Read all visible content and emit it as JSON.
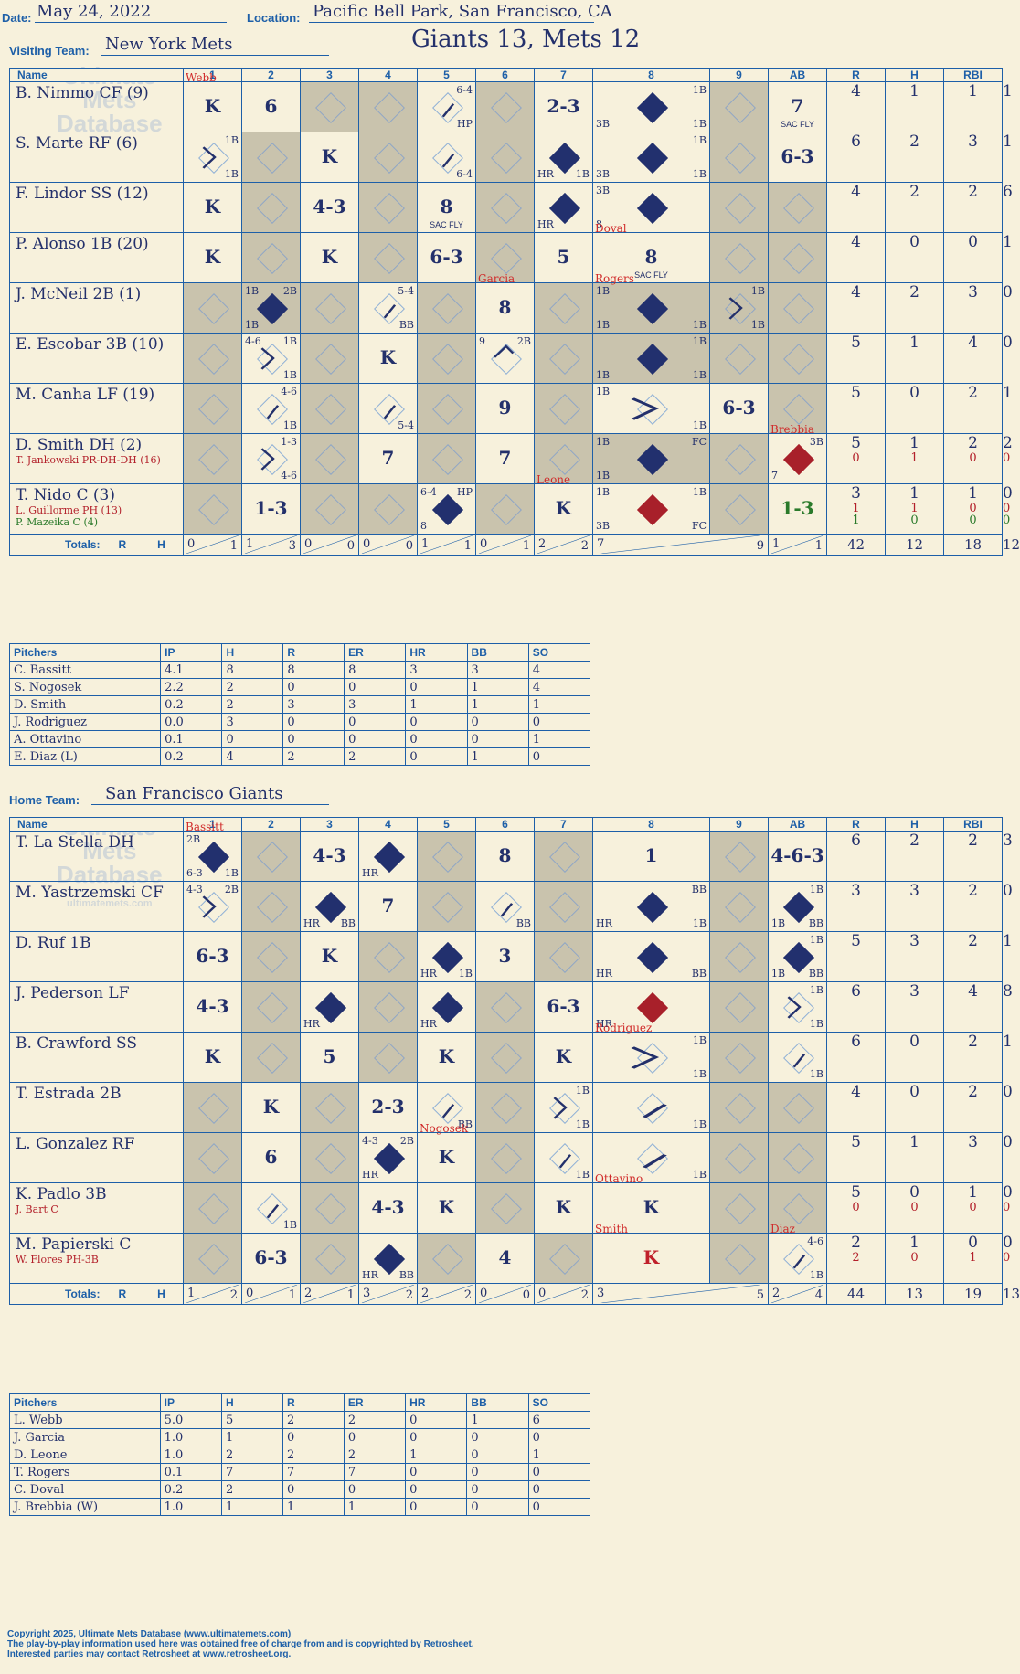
{
  "header": {
    "date_label": "Date:",
    "date": "May 24, 2022",
    "location_label": "Location:",
    "location": "Pacific Bell Park, San Francisco, CA",
    "visiting_label": "Visiting Team:",
    "visiting_team": "New York Mets",
    "home_label": "Home Team:",
    "home_team": "San Francisco Giants",
    "title": "Giants 13, Mets 12"
  },
  "columns": {
    "name": "Name",
    "innings": [
      "1",
      "2",
      "3",
      "4",
      "5",
      "6",
      "7",
      "8",
      "9"
    ],
    "ab": "AB",
    "r": "R",
    "h": "H",
    "rbi": "RBI"
  },
  "watermark": {
    "line1": "Ultimate",
    "line2": "Mets",
    "line3": "Database",
    "url": "ultimatemets.com"
  },
  "visitors": {
    "players": [
      {
        "name": "B. Nimmo CF (9)",
        "ab": "4",
        "r": "1",
        "h": "1",
        "rbi": "1"
      },
      {
        "name": "S. Marte RF (6)",
        "ab": "6",
        "r": "2",
        "h": "3",
        "rbi": "1"
      },
      {
        "name": "F. Lindor SS (12)",
        "ab": "4",
        "r": "2",
        "h": "2",
        "rbi": "6"
      },
      {
        "name": "P. Alonso 1B (20)",
        "ab": "4",
        "r": "0",
        "h": "0",
        "rbi": "1"
      },
      {
        "name": "J. McNeil 2B (1)",
        "ab": "4",
        "r": "2",
        "h": "3",
        "rbi": "0"
      },
      {
        "name": "E. Escobar 3B (10)",
        "ab": "5",
        "r": "1",
        "h": "4",
        "rbi": "0"
      },
      {
        "name": "M. Canha LF (19)",
        "ab": "5",
        "r": "0",
        "h": "2",
        "rbi": "1"
      },
      {
        "name": "D. Smith DH (2)",
        "sub1": "T. Jankowski PR-DH-DH (16)",
        "ab": "5",
        "r": "1",
        "h": "2",
        "rbi": "2",
        "sub1_stats": {
          "ab": "0",
          "r": "1",
          "h": "0",
          "rbi": "0"
        }
      },
      {
        "name": "T. Nido C (3)",
        "sub1": "L. Guillorme PH (13)",
        "sub2": "P. Mazeika C (4)",
        "ab": "3",
        "r": "1",
        "h": "1",
        "rbi": "0",
        "sub1_stats": {
          "ab": "1",
          "r": "1",
          "h": "0",
          "rbi": "0"
        },
        "sub2_stats": {
          "ab": "1",
          "r": "0",
          "h": "0",
          "rbi": "0"
        }
      }
    ],
    "totals_label": "Totals:",
    "totals_r_label": "R",
    "totals_h_label": "H",
    "inning_totals": [
      [
        "0",
        "1"
      ],
      [
        "1",
        "3"
      ],
      [
        "0",
        "0"
      ],
      [
        "0",
        "0"
      ],
      [
        "1",
        "1"
      ],
      [
        "0",
        "1"
      ],
      [
        "2",
        "2"
      ],
      [
        "7",
        "9"
      ],
      [
        "1",
        "1"
      ]
    ],
    "totals": {
      "ab": "42",
      "r": "12",
      "h": "18",
      "rbi": "12"
    }
  },
  "home": {
    "players": [
      {
        "name": "T. La Stella DH",
        "ab": "6",
        "r": "2",
        "h": "2",
        "rbi": "3"
      },
      {
        "name": "M. Yastrzemski CF",
        "ab": "3",
        "r": "3",
        "h": "2",
        "rbi": "0"
      },
      {
        "name": "D. Ruf 1B",
        "ab": "5",
        "r": "3",
        "h": "2",
        "rbi": "1"
      },
      {
        "name": "J. Pederson LF",
        "ab": "6",
        "r": "3",
        "h": "4",
        "rbi": "8"
      },
      {
        "name": "B. Crawford SS",
        "ab": "6",
        "r": "0",
        "h": "2",
        "rbi": "1"
      },
      {
        "name": "T. Estrada 2B",
        "ab": "4",
        "r": "0",
        "h": "2",
        "rbi": "0"
      },
      {
        "name": "L. Gonzalez RF",
        "ab": "5",
        "r": "1",
        "h": "3",
        "rbi": "0"
      },
      {
        "name": "K. Padlo 3B",
        "sub1": "J. Bart C",
        "ab": "5",
        "r": "0",
        "h": "1",
        "rbi": "0",
        "sub1_stats": {
          "ab": "0",
          "r": "0",
          "h": "0",
          "rbi": "0"
        }
      },
      {
        "name": "M. Papierski C",
        "sub1": "W. Flores PH-3B",
        "ab": "2",
        "r": "1",
        "h": "0",
        "rbi": "0",
        "sub1_stats": {
          "ab": "2",
          "r": "0",
          "h": "1",
          "rbi": "0"
        }
      }
    ],
    "totals_label": "Totals:",
    "totals_r_label": "R",
    "totals_h_label": "H",
    "inning_totals": [
      [
        "1",
        "2"
      ],
      [
        "0",
        "1"
      ],
      [
        "2",
        "1"
      ],
      [
        "3",
        "2"
      ],
      [
        "2",
        "2"
      ],
      [
        "0",
        "0"
      ],
      [
        "0",
        "2"
      ],
      [
        "3",
        "5"
      ],
      [
        "2",
        "4"
      ]
    ],
    "totals": {
      "ab": "44",
      "r": "13",
      "h": "19",
      "rbi": "13"
    }
  },
  "pitching_headers": {
    "name": "Pitchers",
    "ip": "IP",
    "h": "H",
    "r": "R",
    "er": "ER",
    "hr": "HR",
    "bb": "BB",
    "so": "SO"
  },
  "visitor_pitchers": [
    {
      "name": "C. Bassitt",
      "ip": "4.1",
      "h": "8",
      "r": "8",
      "er": "8",
      "hr": "3",
      "bb": "3",
      "so": "4"
    },
    {
      "name": "S. Nogosek",
      "ip": "2.2",
      "h": "2",
      "r": "0",
      "er": "0",
      "hr": "0",
      "bb": "1",
      "so": "4"
    },
    {
      "name": "D. Smith",
      "ip": "0.2",
      "h": "2",
      "r": "3",
      "er": "3",
      "hr": "1",
      "bb": "1",
      "so": "1"
    },
    {
      "name": "J. Rodriguez",
      "ip": "0.0",
      "h": "3",
      "r": "0",
      "er": "0",
      "hr": "0",
      "bb": "0",
      "so": "0"
    },
    {
      "name": "A. Ottavino",
      "ip": "0.1",
      "h": "0",
      "r": "0",
      "er": "0",
      "hr": "0",
      "bb": "0",
      "so": "1"
    },
    {
      "name": "E. Diaz (L)",
      "ip": "0.2",
      "h": "4",
      "r": "2",
      "er": "2",
      "hr": "0",
      "bb": "1",
      "so": "0"
    }
  ],
  "home_pitchers": [
    {
      "name": "L. Webb",
      "ip": "5.0",
      "h": "5",
      "r": "2",
      "er": "2",
      "hr": "0",
      "bb": "1",
      "so": "6"
    },
    {
      "name": "J. Garcia",
      "ip": "1.0",
      "h": "1",
      "r": "0",
      "er": "0",
      "hr": "0",
      "bb": "0",
      "so": "0"
    },
    {
      "name": "D. Leone",
      "ip": "1.0",
      "h": "2",
      "r": "2",
      "er": "2",
      "hr": "1",
      "bb": "0",
      "so": "1"
    },
    {
      "name": "T. Rogers",
      "ip": "0.1",
      "h": "7",
      "r": "7",
      "er": "7",
      "hr": "0",
      "bb": "0",
      "so": "0"
    },
    {
      "name": "C. Doval",
      "ip": "0.2",
      "h": "2",
      "r": "0",
      "er": "0",
      "hr": "0",
      "bb": "0",
      "so": "0"
    },
    {
      "name": "J. Brebbia (W)",
      "ip": "1.0",
      "h": "1",
      "r": "1",
      "er": "1",
      "hr": "0",
      "bb": "0",
      "so": "0"
    }
  ],
  "visitor_cells": [
    [
      {
        "o": "K",
        "pit": "Webb"
      },
      {
        "o": "6"
      },
      {
        "s": 1
      },
      {
        "s": 1
      },
      {
        "tr": "6-4",
        "br": "HP",
        "slash": 1
      },
      {
        "s": 1
      },
      {
        "o": "2-3"
      },
      {
        "run": 1,
        "tr": "1B",
        "bl": "3B",
        "br": "1B"
      },
      {
        "s": 1
      },
      {
        "o": "7",
        "note": "SAC FLY"
      }
    ],
    [
      {
        "bar": 1,
        "tr": "1B",
        "br": "1B"
      },
      {
        "s": 1
      },
      {
        "o": "K"
      },
      {
        "s": 1
      },
      {
        "slash": 1,
        "br": "6-4"
      },
      {
        "s": 1
      },
      {
        "run": 1,
        "bl": "HR",
        "br": "1B"
      },
      {
        "run": 1,
        "tr": "1B",
        "bl": "3B",
        "br": "1B"
      },
      {
        "s": 1
      },
      {
        "o": "6-3"
      }
    ],
    [
      {
        "o": "K"
      },
      {
        "s": 1
      },
      {
        "o": "4-3"
      },
      {
        "s": 1
      },
      {
        "o": "8",
        "note": "SAC FLY"
      },
      {
        "s": 1
      },
      {
        "run": 1,
        "bl": "HR"
      },
      {
        "run": 1,
        "tl": "3B",
        "bl": "8"
      },
      {
        "s": 1
      },
      {
        "s": 1
      }
    ],
    [
      {
        "o": "K"
      },
      {
        "s": 1
      },
      {
        "o": "K"
      },
      {
        "s": 1
      },
      {
        "o": "6-3"
      },
      {
        "s": 1
      },
      {
        "o": "5"
      },
      {
        "o": "8",
        "note": "SAC FLY",
        "pit": "Doval"
      },
      {
        "s": 1
      },
      {
        "s": 1
      }
    ],
    [
      {
        "s": 1
      },
      {
        "run": 1,
        "tl": "1B",
        "tr": "2B",
        "bl": "1B",
        "sh": 1
      },
      {
        "s": 1
      },
      {
        "tr": "5-4",
        "br": "BB",
        "slash": 1
      },
      {
        "s": 1
      },
      {
        "o": "8",
        "pit": "Garcia"
      },
      {
        "s": 1
      },
      {
        "run": 1,
        "tl": "1B",
        "bl": "1B",
        "br": "1B",
        "pit": "Rogers",
        "sh": 1
      },
      {
        "bar": 1,
        "tr": "1B",
        "br": "1B",
        "sh": 1
      },
      {
        "s": 1
      }
    ],
    [
      {
        "s": 1
      },
      {
        "bar": 1,
        "tl": "4-6",
        "tr": "1B",
        "br": "1B"
      },
      {
        "s": 1
      },
      {
        "o": "K"
      },
      {
        "s": 1
      },
      {
        "bar2": 1,
        "tl": "9",
        "tr": "2B"
      },
      {
        "s": 1
      },
      {
        "run": 1,
        "tr": "1B",
        "bl": "1B",
        "br": "1B",
        "sh": 1
      },
      {
        "s": 1
      },
      {
        "s": 1
      }
    ],
    [
      {
        "s": 1
      },
      {
        "tr": "4-6",
        "br": "1B",
        "slash": 1
      },
      {
        "s": 1
      },
      {
        "slash": 1,
        "br": "5-4"
      },
      {
        "s": 1
      },
      {
        "o": "9"
      },
      {
        "s": 1
      },
      {
        "bar": 1,
        "tl": "1B",
        "br": "1B"
      },
      {
        "o": "6-3"
      },
      {
        "s": 1
      }
    ],
    [
      {
        "s": 1
      },
      {
        "bar": 1,
        "tr": "1-3",
        "br": "4-6"
      },
      {
        "s": 1
      },
      {
        "o": "7"
      },
      {
        "s": 1
      },
      {
        "o": "7"
      },
      {
        "s": 1
      },
      {
        "run": 1,
        "tl": "1B",
        "tr": "FC",
        "bl": "1B",
        "sh": 1
      },
      {
        "s": 1
      },
      {
        "red": 1,
        "tr": "3B",
        "bl": "7",
        "pit": "Brebbia"
      }
    ],
    [
      {
        "s": 1
      },
      {
        "o": "1-3"
      },
      {
        "s": 1
      },
      {
        "s": 1
      },
      {
        "run": 1,
        "tl": "6-4",
        "tr": "HP",
        "bl": "8"
      },
      {
        "s": 1
      },
      {
        "o": "K",
        "pit": "Leone"
      },
      {
        "red": 1,
        "tl": "1B",
        "tr": "1B",
        "bl": "3B",
        "br": "FC"
      },
      {
        "s": 1
      },
      {
        "o": "1-3",
        "green": 1
      }
    ]
  ],
  "home_cells": [
    [
      {
        "run": 1,
        "tl": "2B",
        "bl": "6-3",
        "br": "1B",
        "pit": "Bassitt"
      },
      {
        "s": 1
      },
      {
        "o": "4-3"
      },
      {
        "run": 1,
        "bl": "HR"
      },
      {
        "s": 1
      },
      {
        "o": "8"
      },
      {
        "s": 1
      },
      {
        "o": "1"
      },
      {
        "s": 1
      },
      {
        "o": "4-6-3"
      }
    ],
    [
      {
        "bar": 1,
        "tl": "4-3",
        "tr": "2B"
      },
      {
        "s": 1
      },
      {
        "run": 1,
        "bl": "HR",
        "br": "BB"
      },
      {
        "o": "7"
      },
      {
        "s": 1
      },
      {
        "slash": 1,
        "br": "BB"
      },
      {
        "s": 1
      },
      {
        "run": 1,
        "tr": "BB",
        "bl": "HR",
        "br": "1B"
      },
      {
        "s": 1
      },
      {
        "run": 1,
        "tr": "1B",
        "bl": "1B",
        "br": "BB"
      }
    ],
    [
      {
        "o": "6-3"
      },
      {
        "s": 1
      },
      {
        "o": "K"
      },
      {
        "s": 1
      },
      {
        "run": 1,
        "bl": "HR",
        "br": "1B"
      },
      {
        "o": "3"
      },
      {
        "s": 1
      },
      {
        "run": 1,
        "bl": "HR",
        "br": "BB"
      },
      {
        "s": 1
      },
      {
        "run": 1,
        "tr": "1B",
        "bl": "1B",
        "br": "BB"
      }
    ],
    [
      {
        "o": "4-3"
      },
      {
        "s": 1
      },
      {
        "run": 1,
        "bl": "HR"
      },
      {
        "s": 1
      },
      {
        "run": 1,
        "bl": "HR"
      },
      {
        "s": 1
      },
      {
        "o": "6-3"
      },
      {
        "red": 1,
        "bl": "HR"
      },
      {
        "s": 1
      },
      {
        "bar": 1,
        "tr": "1B",
        "br": "1B"
      }
    ],
    [
      {
        "o": "K"
      },
      {
        "s": 1
      },
      {
        "o": "5"
      },
      {
        "s": 1
      },
      {
        "o": "K"
      },
      {
        "s": 1
      },
      {
        "o": "K"
      },
      {
        "bar": 1,
        "tr": "1B",
        "br": "1B",
        "pit": "Rodriguez"
      },
      {
        "s": 1
      },
      {
        "slash": 1,
        "br": "1B"
      }
    ],
    [
      {
        "s": 1
      },
      {
        "o": "K"
      },
      {
        "s": 1
      },
      {
        "o": "2-3"
      },
      {
        "slash": 1,
        "br": "BB"
      },
      {
        "s": 1
      },
      {
        "bar": 1,
        "tr": "1B",
        "br": "1B"
      },
      {
        "slash": 1,
        "br": "1B"
      },
      {
        "s": 1
      },
      {
        "s": 1
      }
    ],
    [
      {
        "s": 1
      },
      {
        "o": "6"
      },
      {
        "s": 1
      },
      {
        "run": 1,
        "tl": "4-3",
        "tr": "2B",
        "bl": "HR"
      },
      {
        "o": "K",
        "pit": "Nogosek"
      },
      {
        "s": 1
      },
      {
        "slash": 1,
        "br": "1B"
      },
      {
        "slash": 1,
        "br": "1B"
      },
      {
        "s": 1
      },
      {
        "s": 1
      }
    ],
    [
      {
        "s": 1
      },
      {
        "slash": 1,
        "br": "1B"
      },
      {
        "s": 1
      },
      {
        "o": "4-3"
      },
      {
        "o": "K"
      },
      {
        "s": 1
      },
      {
        "o": "K"
      },
      {
        "o": "K",
        "pit": "Ottavino"
      },
      {
        "s": 1
      },
      {
        "s": 1
      }
    ],
    [
      {
        "s": 1
      },
      {
        "o": "6-3"
      },
      {
        "s": 1
      },
      {
        "run": 1,
        "bl": "HR",
        "br": "BB"
      },
      {
        "s": 1
      },
      {
        "o": "4"
      },
      {
        "s": 1
      },
      {
        "o": "K",
        "red_o": 1,
        "pit": "Smith"
      },
      {
        "s": 1
      },
      {
        "slash": 1,
        "tr": "4-6",
        "br": "1B",
        "pit": "Diaz"
      }
    ]
  ],
  "footer": {
    "line1": "Copyright 2025, Ultimate Mets Database (www.ultimatemets.com)",
    "line2": "The play-by-play information used here was obtained free of charge from and is copyrighted by Retrosheet.",
    "line3": "Interested parties may contact Retrosheet at www.retrosheet.org."
  }
}
